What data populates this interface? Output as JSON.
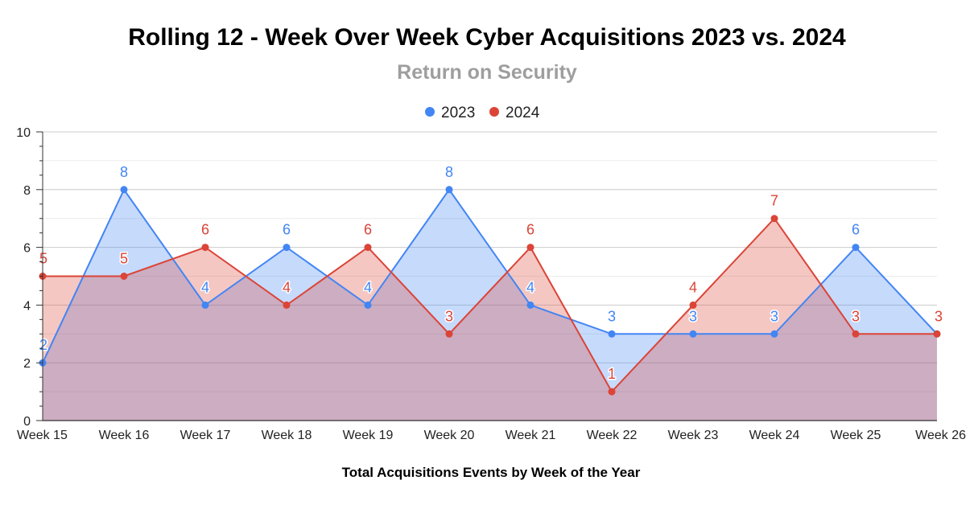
{
  "chart_data": {
    "type": "area",
    "title": "Rolling 12 - Week Over Week Cyber Acquisitions 2023 vs. 2024",
    "subtitle": "Return on Security",
    "xlabel": "Total Acquisitions Events by Week of the Year",
    "ylabel": "",
    "categories": [
      "Week 15",
      "Week 16",
      "Week 17",
      "Week 18",
      "Week 19",
      "Week 20",
      "Week 21",
      "Week 22",
      "Week 23",
      "Week 24",
      "Week 25",
      "Week 26"
    ],
    "ylim": [
      0,
      10
    ],
    "yticks": [
      "0",
      "2",
      "4",
      "6",
      "8",
      "10"
    ],
    "grid": true,
    "legend_position": "top",
    "series": [
      {
        "name": "2023",
        "color": "#4285f4",
        "fill": "#b7cff5",
        "values": [
          2,
          8,
          4,
          6,
          4,
          8,
          4,
          3,
          3,
          3,
          6,
          3
        ]
      },
      {
        "name": "2024",
        "color": "#db4437",
        "fill": "#f3b8b3",
        "values": [
          5,
          5,
          6,
          4,
          6,
          3,
          6,
          1,
          4,
          7,
          3,
          3
        ]
      }
    ]
  }
}
